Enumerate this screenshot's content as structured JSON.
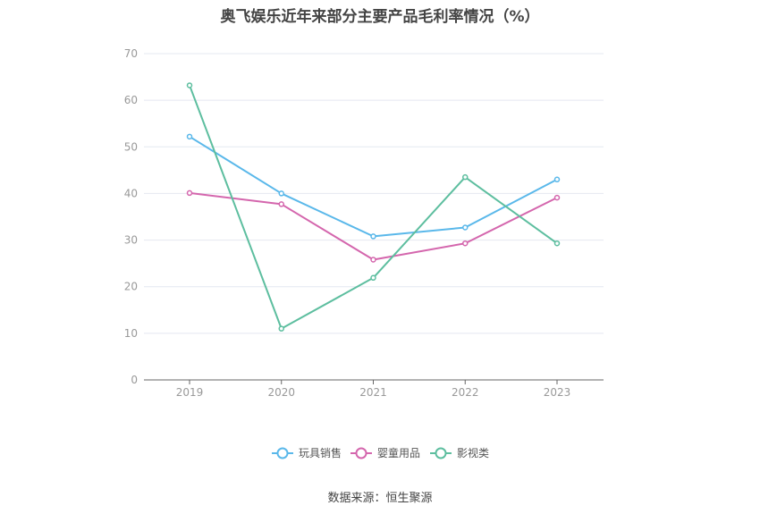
{
  "chart_data": {
    "type": "line",
    "title": "奥飞娱乐近年来部分主要产品毛利率情况（%）",
    "x": [
      "2019",
      "2020",
      "2021",
      "2022",
      "2023"
    ],
    "ylim": [
      0,
      70
    ],
    "yticks": [
      0,
      10,
      20,
      30,
      40,
      50,
      60,
      70
    ],
    "grid": true,
    "legend_position": "bottom",
    "series": [
      {
        "name": "玩具销售",
        "color": "#5ab8ea",
        "values": [
          52.2,
          40.0,
          30.8,
          32.7,
          43.0
        ]
      },
      {
        "name": "婴童用品",
        "color": "#d466ad",
        "values": [
          40.1,
          37.7,
          25.8,
          29.3,
          39.1
        ]
      },
      {
        "name": "影视类",
        "color": "#5dbe9f",
        "values": [
          63.2,
          11.0,
          21.9,
          43.5,
          29.3
        ]
      }
    ]
  },
  "source": "数据来源：恒生聚源"
}
